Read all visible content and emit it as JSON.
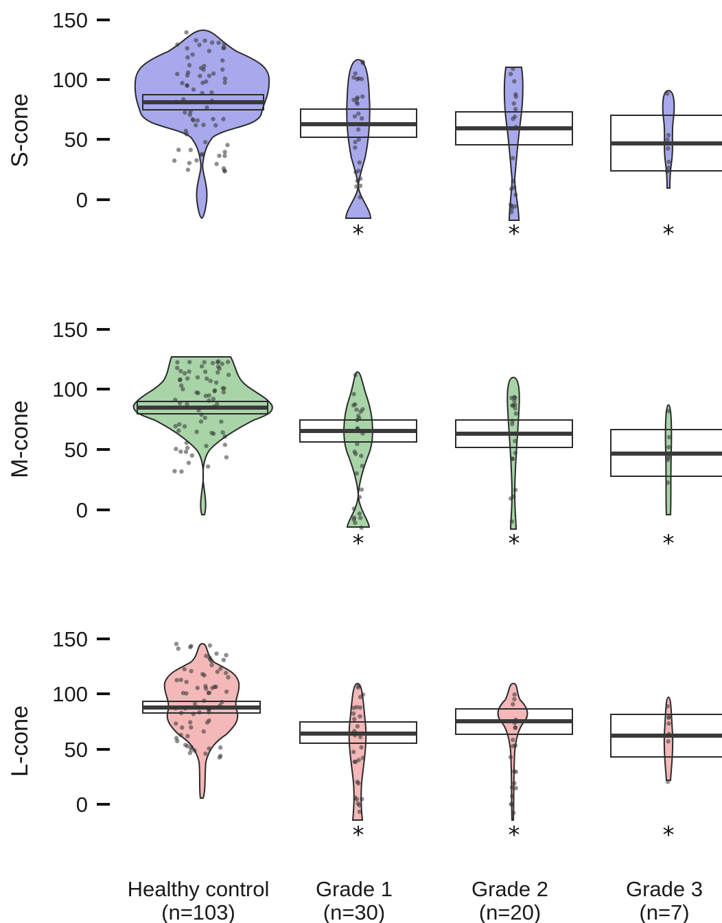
{
  "colors": {
    "S-cone": "#a8a8ec",
    "M-cone": "#a8d4a8",
    "L-cone": "#f4b8b8",
    "outline": "#2a2a2a",
    "median": "#3a3a3a",
    "point": "#333333"
  },
  "chart_data": {
    "type": "violin-box",
    "categories": [
      "Healthy control",
      "Grade 1",
      "Grade 2",
      "Grade 3"
    ],
    "category_counts": [
      "(n=103)",
      "(n=30)",
      "(n=20)",
      "(n=7)"
    ],
    "significance_marker": "*",
    "panels": [
      {
        "ylabel": "S-cone",
        "ylim": [
          0,
          150
        ],
        "yticks": [
          "0",
          "50",
          "100",
          "150"
        ],
        "groups": [
          {
            "category": "Healthy control",
            "median": 80,
            "q1": 75,
            "q3": 87,
            "min": -15,
            "max": 140,
            "significant": false
          },
          {
            "category": "Grade 1",
            "median": 63,
            "q1": 52,
            "q3": 75,
            "min": -15,
            "max": 116,
            "significant": true
          },
          {
            "category": "Grade 2",
            "median": 59,
            "q1": 45,
            "q3": 73,
            "min": -15,
            "max": 110,
            "significant": true
          },
          {
            "category": "Grade 3",
            "median": 47,
            "q1": 24,
            "q3": 70,
            "min": 10,
            "max": 89,
            "significant": true
          }
        ]
      },
      {
        "ylabel": "M-cone",
        "ylim": [
          0,
          150
        ],
        "yticks": [
          "0",
          "50",
          "100",
          "150"
        ],
        "groups": [
          {
            "category": "Healthy control",
            "median": 84,
            "q1": 79,
            "q3": 88,
            "min": 0,
            "max": 127,
            "significant": false
          },
          {
            "category": "Grade 1",
            "median": 65,
            "q1": 56,
            "q3": 75,
            "min": -15,
            "max": 113,
            "significant": true
          },
          {
            "category": "Grade 2",
            "median": 62,
            "q1": 51,
            "q3": 75,
            "min": -15,
            "max": 110,
            "significant": true
          },
          {
            "category": "Grade 3",
            "median": 46,
            "q1": 27,
            "q3": 66,
            "min": -5,
            "max": 88,
            "significant": true
          }
        ]
      },
      {
        "ylabel": "L-cone",
        "ylim": [
          0,
          150
        ],
        "yticks": [
          "0",
          "50",
          "100",
          "150"
        ],
        "groups": [
          {
            "category": "Healthy control",
            "median": 87,
            "q1": 82,
            "q3": 93,
            "min": 6,
            "max": 146,
            "significant": false
          },
          {
            "category": "Grade 1",
            "median": 64,
            "q1": 55,
            "q3": 75,
            "min": -15,
            "max": 108,
            "significant": true
          },
          {
            "category": "Grade 2",
            "median": 75,
            "q1": 63,
            "q3": 86,
            "min": -15,
            "max": 109,
            "significant": true
          },
          {
            "category": "Grade 3",
            "median": 62,
            "q1": 42,
            "q3": 81,
            "min": 20,
            "max": 97,
            "significant": true
          }
        ]
      }
    ]
  }
}
